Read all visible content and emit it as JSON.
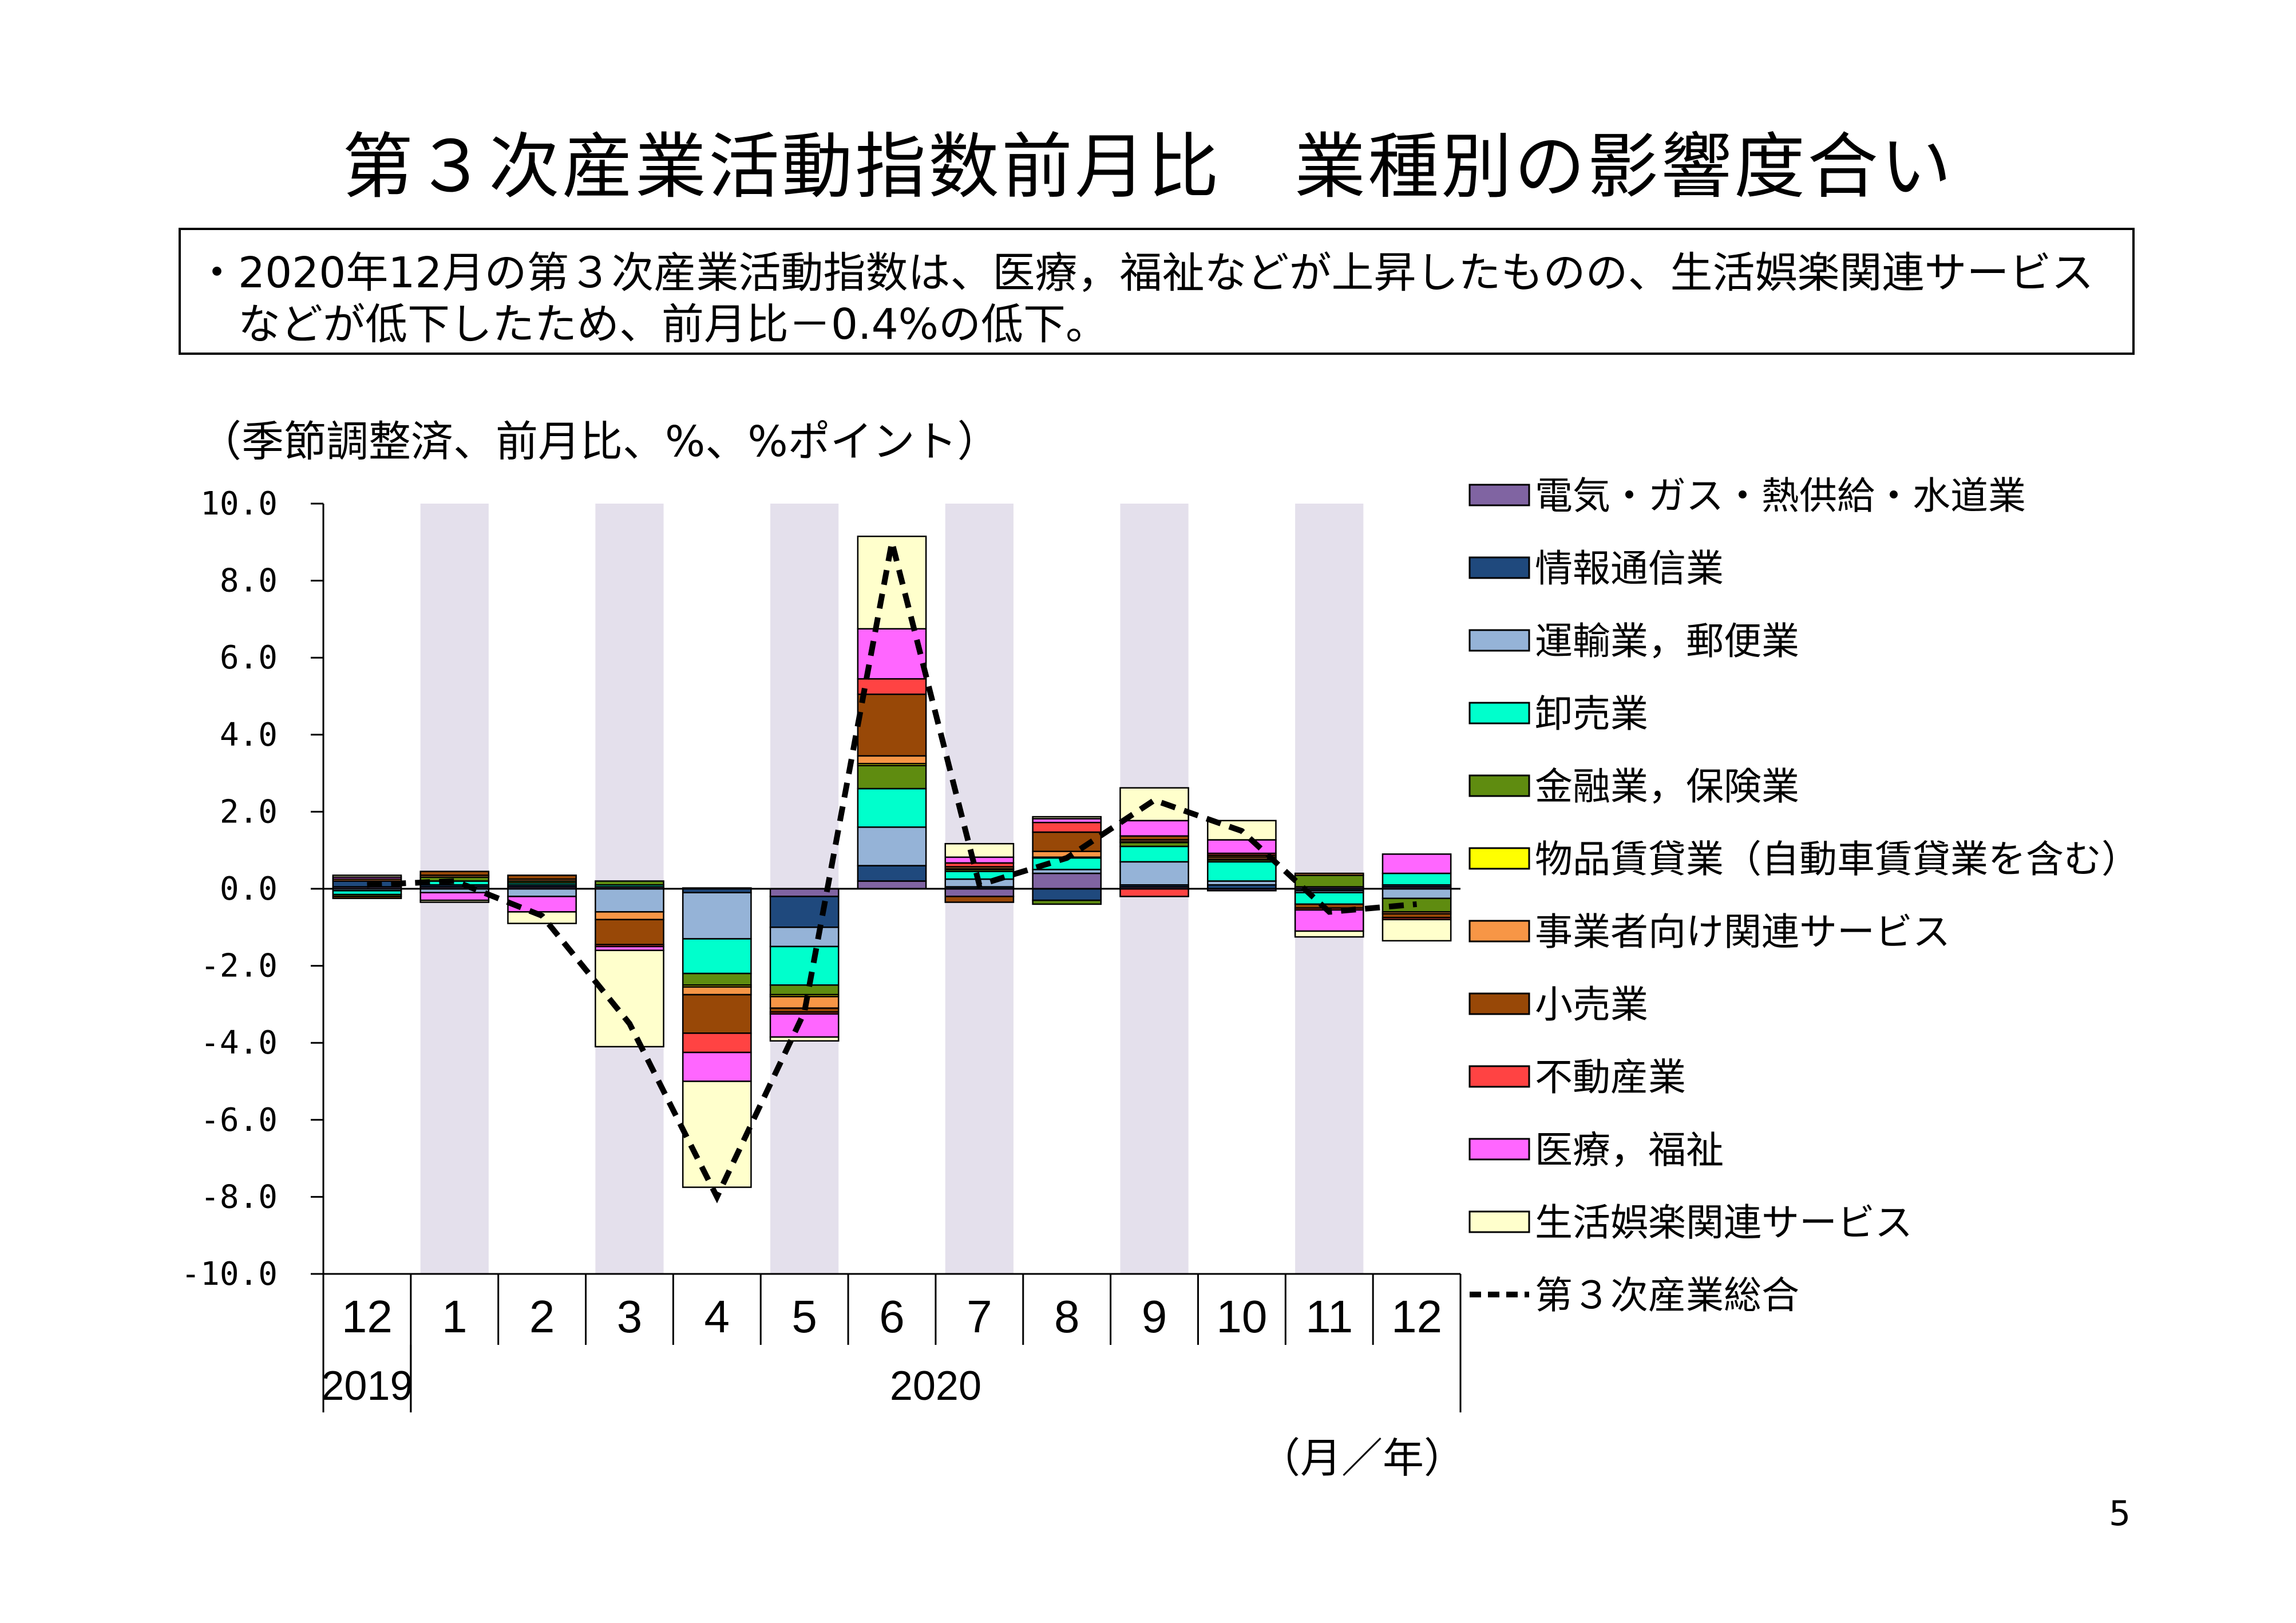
{
  "title": "第３次産業活動指数前月比　業種別の影響度合い",
  "summary": {
    "line1": "・2020年12月の第３次産業活動指数は、医療，福祉などが上昇したものの、生活娯楽関連サービス",
    "line2": "などが低下したため、前月比－0.4%の低下。"
  },
  "units_note": "（季節調整済、前月比、%、%ポイント）",
  "axis_unit_note": "（月／年）",
  "page_number": "5",
  "colors": {
    "shading": "#e4e0ec",
    "electricity": "#8064a2",
    "information": "#1f497d",
    "transport": "#95b3d7",
    "wholesale": "#00ffcc",
    "finance": "#5f8c10",
    "leasing": "#ffff00",
    "business": "#f79646",
    "retail": "#984807",
    "realestate": "#ff4343",
    "medical": "#ff66ff",
    "living": "#ffffcc",
    "total": "#000000"
  },
  "chart_data": {
    "type": "bar",
    "stacked": true,
    "categories": [
      "12",
      "1",
      "2",
      "3",
      "4",
      "5",
      "6",
      "7",
      "8",
      "9",
      "10",
      "11",
      "12"
    ],
    "year_labels": [
      {
        "label": "2019",
        "from": 0,
        "to": 0
      },
      {
        "label": "2020",
        "from": 1,
        "to": 12
      }
    ],
    "ylim": [
      -10,
      10
    ],
    "yticks": [
      "10.0",
      "8.0",
      "6.0",
      "4.0",
      "2.0",
      "0.0",
      "-2.0",
      "-4.0",
      "-6.0",
      "-8.0",
      "-10.0"
    ],
    "shaded_categories": [
      1,
      3,
      5,
      7,
      9,
      11
    ],
    "series": [
      {
        "name": "電気・ガス・熱供給・水道業",
        "key": "electricity",
        "values": [
          0.05,
          0.05,
          0.05,
          0.05,
          0.02,
          -0.2,
          0.2,
          -0.2,
          0.4,
          0.05,
          -0.05,
          0.05,
          0.05
        ]
      },
      {
        "name": "情報通信業",
        "key": "information",
        "values": [
          0.15,
          0.05,
          0.05,
          0.0,
          -0.1,
          -0.8,
          0.4,
          0.05,
          -0.3,
          0.05,
          0.1,
          -0.05,
          0.05
        ]
      },
      {
        "name": "運輸業，郵便業",
        "key": "transport",
        "values": [
          -0.05,
          -0.1,
          -0.2,
          -0.6,
          -1.2,
          -0.5,
          1.0,
          0.2,
          0.1,
          0.6,
          0.1,
          -0.05,
          -0.25
        ]
      },
      {
        "name": "卸売業",
        "key": "wholesale",
        "values": [
          -0.1,
          0.1,
          0.05,
          0.05,
          -0.9,
          -1.0,
          1.0,
          0.2,
          0.3,
          0.4,
          0.5,
          -0.3,
          0.3
        ]
      },
      {
        "name": "金融業，保険業",
        "key": "finance",
        "values": [
          -0.05,
          0.1,
          0.05,
          0.1,
          -0.3,
          -0.25,
          0.6,
          0.05,
          -0.1,
          0.1,
          0.05,
          0.3,
          -0.35
        ]
      },
      {
        "name": "物品賃貸業（自動車賃貸業を含む）",
        "key": "leasing",
        "values": [
          0.0,
          0.0,
          0.0,
          0.0,
          -0.05,
          -0.05,
          0.05,
          0.02,
          0.02,
          0.02,
          0.02,
          0.0,
          0.0
        ]
      },
      {
        "name": "事業者向け関連サービス",
        "key": "business",
        "values": [
          0.05,
          0.05,
          0.05,
          -0.2,
          -0.2,
          -0.3,
          0.2,
          0.05,
          0.15,
          0.05,
          0.05,
          0.05,
          -0.05
        ]
      },
      {
        "name": "小売業",
        "key": "retail",
        "values": [
          -0.05,
          0.1,
          0.1,
          -0.65,
          -1.0,
          -0.1,
          1.6,
          -0.15,
          0.5,
          0.1,
          0.05,
          -0.1,
          -0.1
        ]
      },
      {
        "name": "不動産業",
        "key": "realestate",
        "values": [
          0.0,
          0.0,
          0.0,
          -0.05,
          -0.5,
          -0.05,
          0.4,
          0.1,
          0.25,
          -0.2,
          0.05,
          -0.05,
          -0.05
        ]
      },
      {
        "name": "医療，福祉",
        "key": "medical",
        "values": [
          0.05,
          -0.2,
          -0.4,
          -0.1,
          -0.75,
          -0.6,
          1.3,
          0.15,
          0.1,
          0.4,
          0.35,
          -0.55,
          0.5
        ]
      },
      {
        "name": "生活娯楽関連サービス",
        "key": "living",
        "values": [
          0.05,
          -0.05,
          -0.3,
          -2.5,
          -2.75,
          -0.1,
          2.4,
          0.35,
          0.05,
          0.85,
          0.5,
          -0.15,
          -0.55
        ]
      }
    ],
    "total": {
      "name": "第３次産業総合",
      "key": "total",
      "values": [
        0.1,
        0.2,
        -0.7,
        -3.5,
        -8.0,
        -3.2,
        9.0,
        0.1,
        0.8,
        2.3,
        1.5,
        -0.6,
        -0.4
      ]
    }
  }
}
